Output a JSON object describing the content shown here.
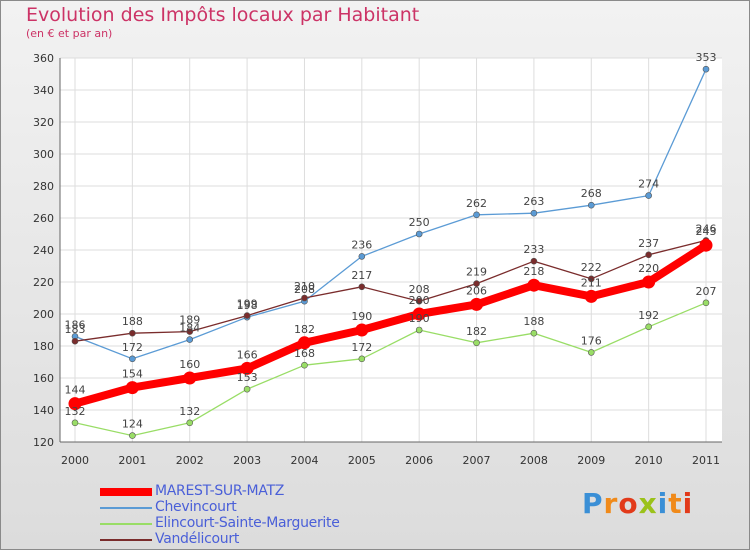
{
  "header": {
    "title": "Evolution des Impôts locaux par Habitant",
    "subtitle": "(en € et par an)"
  },
  "brand": {
    "letters": [
      "P",
      "r",
      "o",
      "x",
      "i",
      "t",
      "i"
    ],
    "colors": [
      "#3a8fd6",
      "#f08a1a",
      "#e23a1a",
      "#9bc21a",
      "#3a8fd6",
      "#f08a1a",
      "#e23a1a"
    ]
  },
  "chart_data": {
    "type": "line",
    "x": [
      "2000",
      "2001",
      "2002",
      "2003",
      "2004",
      "2005",
      "2006",
      "2007",
      "2008",
      "2009",
      "2010",
      "2011"
    ],
    "y_ticks": [
      "120",
      "140",
      "160",
      "180",
      "200",
      "220",
      "240",
      "260",
      "280",
      "300",
      "320",
      "340",
      "360"
    ],
    "ylim": [
      120,
      360
    ],
    "grid": true,
    "series": [
      {
        "name": "MAREST-SUR-MATZ",
        "color": "#ff0000",
        "values": [
          144,
          154,
          160,
          166,
          182,
          190,
          200,
          206,
          218,
          211,
          220,
          243
        ],
        "labels": [
          "144",
          "154",
          "160",
          "166",
          "182",
          "190",
          "200",
          "206",
          "218",
          "211",
          "220",
          "243"
        ],
        "emphasis": true
      },
      {
        "name": "Chevincourt",
        "color": "#5b9bd5",
        "values": [
          186,
          172,
          184,
          198,
          208,
          236,
          250,
          262,
          263,
          268,
          274,
          353
        ],
        "labels": [
          "186",
          "172",
          "184",
          "198",
          "208",
          "236",
          "250",
          "262",
          "263",
          "268",
          "274",
          "353"
        ]
      },
      {
        "name": "Elincourt-Sainte-Marguerite",
        "color": "#99dd66",
        "values": [
          132,
          124,
          132,
          153,
          168,
          172,
          190,
          182,
          188,
          176,
          192,
          207
        ],
        "labels": [
          "132",
          "124",
          "132",
          "153",
          "168",
          "172",
          "190",
          "182",
          "188",
          "176",
          "192",
          "207"
        ]
      },
      {
        "name": "Vandélicourt",
        "color": "#7a2c2c",
        "values": [
          183,
          188,
          189,
          199,
          210,
          217,
          208,
          219,
          233,
          222,
          237,
          246
        ],
        "labels": [
          "183",
          "188",
          "189",
          "199",
          "210",
          "217",
          "208",
          "219",
          "233",
          "222",
          "237",
          "246"
        ]
      }
    ]
  }
}
